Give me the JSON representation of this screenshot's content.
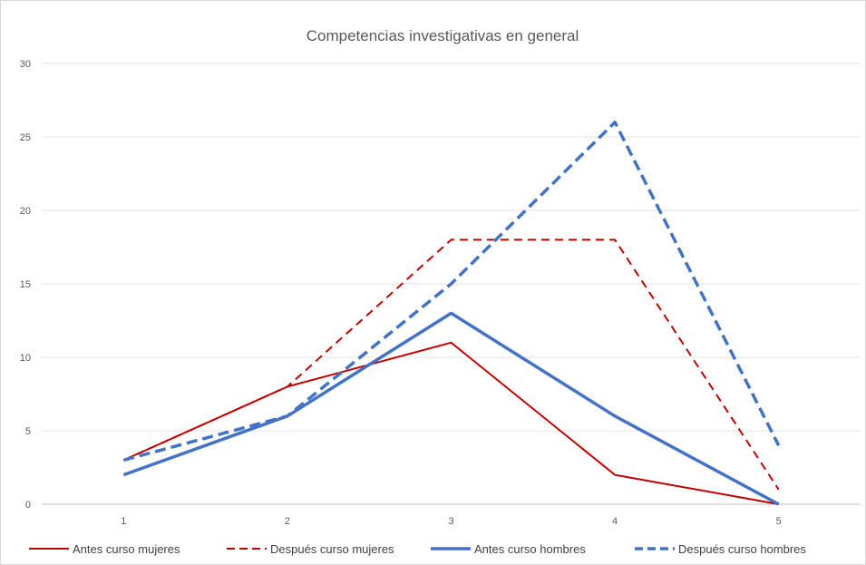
{
  "chart_data": {
    "type": "line",
    "title": "Competencias investigativas en general",
    "xlabel": "",
    "ylabel": "",
    "categories": [
      "1",
      "2",
      "3",
      "4",
      "5"
    ],
    "ylim": [
      0,
      30
    ],
    "yticks": [
      0,
      5,
      10,
      15,
      20,
      25,
      30
    ],
    "grid": true,
    "legend_position": "bottom",
    "series": [
      {
        "name": "Antes curso mujeres",
        "values": [
          3,
          8,
          11,
          2,
          0
        ],
        "color": "#c00000",
        "dash": "solid",
        "width": 2
      },
      {
        "name": "Después curso mujeres",
        "values": [
          3,
          8,
          18,
          18,
          1
        ],
        "color": "#c00000",
        "dash": "dashed",
        "width": 2
      },
      {
        "name": "Antes curso hombres",
        "values": [
          2,
          6,
          13,
          6,
          0
        ],
        "color": "#4472c4",
        "dash": "solid",
        "width": 3.5
      },
      {
        "name": "Después curso hombres",
        "values": [
          3,
          6,
          15,
          26,
          4
        ],
        "color": "#4472c4",
        "dash": "dashed",
        "width": 3.5
      }
    ]
  }
}
